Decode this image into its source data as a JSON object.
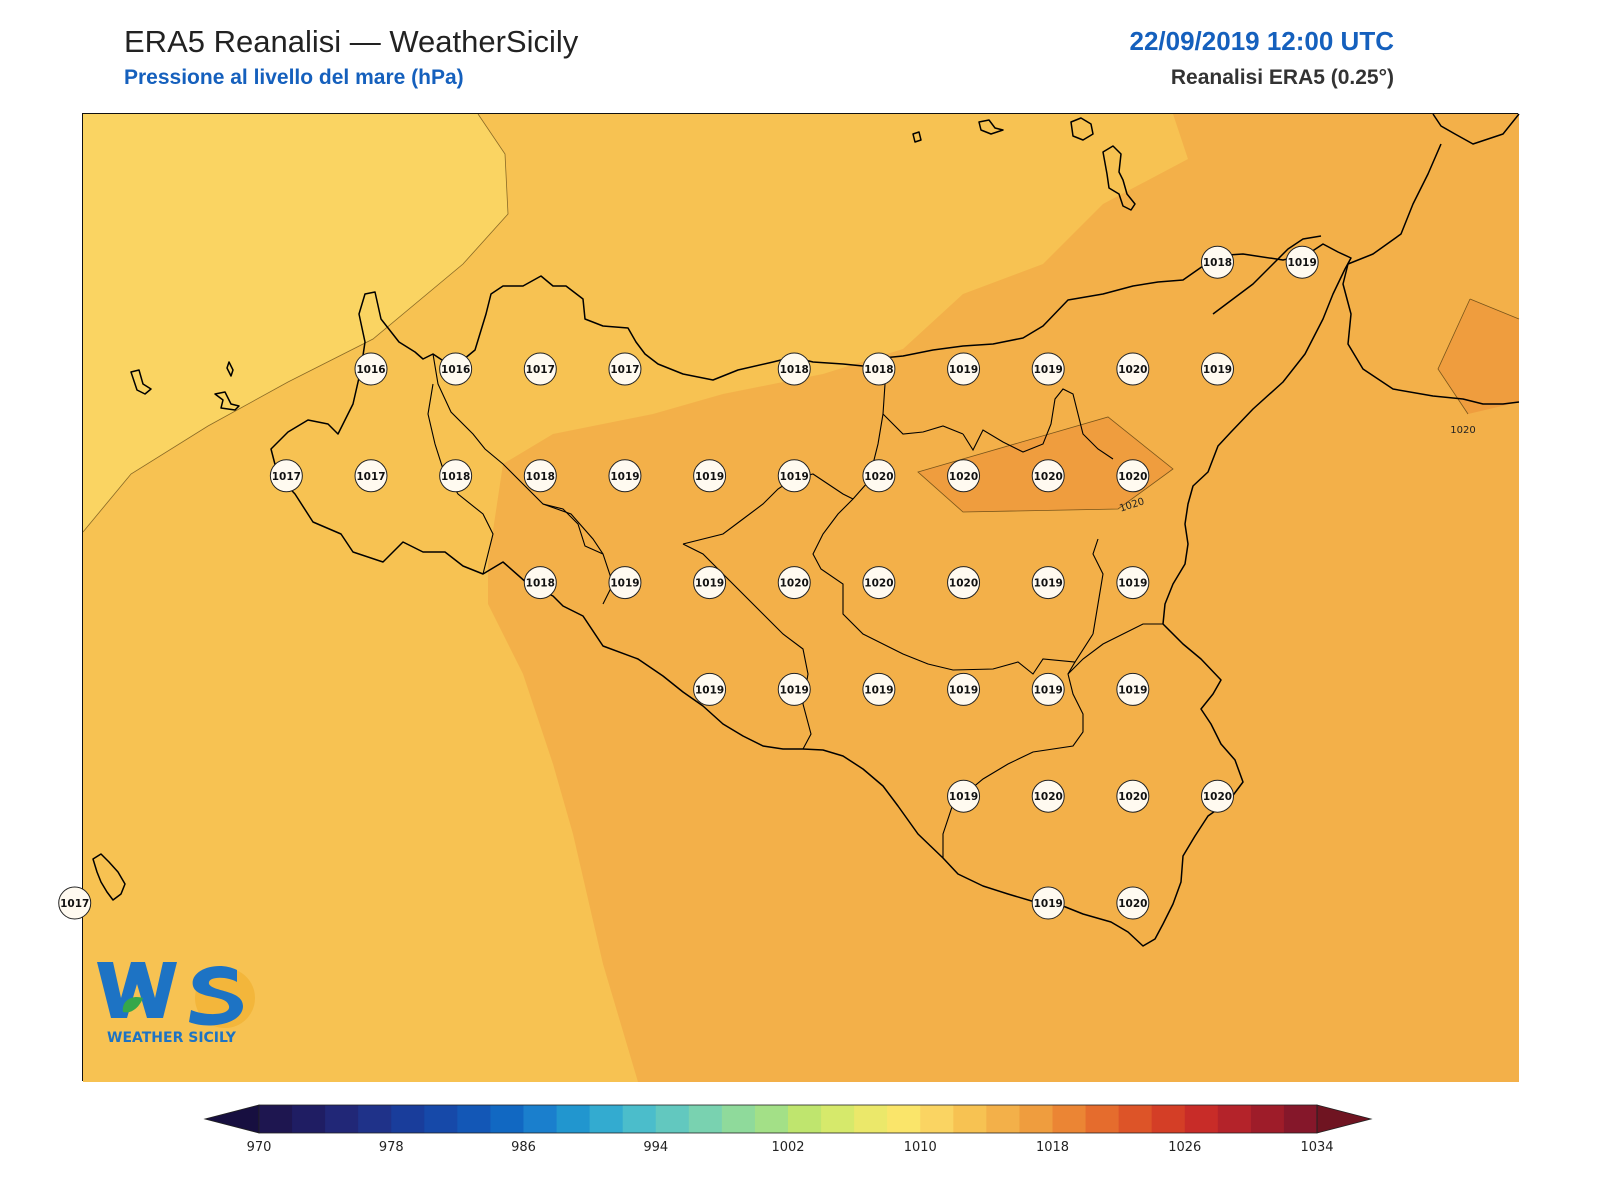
{
  "header": {
    "title": "ERA5 Reanalisi — WeatherSicily",
    "subtitle": "Pressione al livello del mare (hPa)",
    "date": "22/09/2019 12:00 UTC",
    "source": "Reanalisi ERA5 (0.25°)"
  },
  "colors": {
    "accent_blue": "#1560bd",
    "field_1016": "#fad462",
    "field_1018": "#f7c252",
    "field_1019": "#f3b049",
    "field_1020": "#ef9d3e"
  },
  "stations": [
    {
      "lon": 12.0,
      "lat": 38.25,
      "v": "1016"
    },
    {
      "lon": 12.5,
      "lat": 38.25,
      "v": "1016"
    },
    {
      "lon": 13.0,
      "lat": 38.25,
      "v": "1017"
    },
    {
      "lon": 13.5,
      "lat": 38.25,
      "v": "1017"
    },
    {
      "lon": 14.5,
      "lat": 38.25,
      "v": "1018"
    },
    {
      "lon": 15.0,
      "lat": 38.25,
      "v": "1018"
    },
    {
      "lon": 15.5,
      "lat": 38.25,
      "v": "1019"
    },
    {
      "lon": 16.0,
      "lat": 38.25,
      "v": "1019"
    },
    {
      "lon": 16.5,
      "lat": 38.25,
      "v": "1020"
    },
    {
      "lon": 17.0,
      "lat": 38.25,
      "v": "1019"
    },
    {
      "lon": 17.0,
      "lat": 38.75,
      "v": "1018"
    },
    {
      "lon": 17.5,
      "lat": 38.75,
      "v": "1019"
    },
    {
      "lon": 11.5,
      "lat": 37.75,
      "v": "1017"
    },
    {
      "lon": 12.0,
      "lat": 37.75,
      "v": "1017"
    },
    {
      "lon": 12.5,
      "lat": 37.75,
      "v": "1018"
    },
    {
      "lon": 13.0,
      "lat": 37.75,
      "v": "1018"
    },
    {
      "lon": 13.5,
      "lat": 37.75,
      "v": "1019"
    },
    {
      "lon": 14.0,
      "lat": 37.75,
      "v": "1019"
    },
    {
      "lon": 14.5,
      "lat": 37.75,
      "v": "1019"
    },
    {
      "lon": 15.0,
      "lat": 37.75,
      "v": "1020"
    },
    {
      "lon": 15.5,
      "lat": 37.75,
      "v": "1020"
    },
    {
      "lon": 16.0,
      "lat": 37.75,
      "v": "1020"
    },
    {
      "lon": 16.5,
      "lat": 37.75,
      "v": "1020"
    },
    {
      "lon": 13.0,
      "lat": 37.25,
      "v": "1018"
    },
    {
      "lon": 13.5,
      "lat": 37.25,
      "v": "1019"
    },
    {
      "lon": 14.0,
      "lat": 37.25,
      "v": "1019"
    },
    {
      "lon": 14.5,
      "lat": 37.25,
      "v": "1020"
    },
    {
      "lon": 15.0,
      "lat": 37.25,
      "v": "1020"
    },
    {
      "lon": 15.5,
      "lat": 37.25,
      "v": "1020"
    },
    {
      "lon": 16.0,
      "lat": 37.25,
      "v": "1019"
    },
    {
      "lon": 16.5,
      "lat": 37.25,
      "v": "1019"
    },
    {
      "lon": 14.0,
      "lat": 36.75,
      "v": "1019"
    },
    {
      "lon": 14.5,
      "lat": 36.75,
      "v": "1019"
    },
    {
      "lon": 15.0,
      "lat": 36.75,
      "v": "1019"
    },
    {
      "lon": 15.5,
      "lat": 36.75,
      "v": "1019"
    },
    {
      "lon": 16.0,
      "lat": 36.75,
      "v": "1019"
    },
    {
      "lon": 16.5,
      "lat": 36.75,
      "v": "1019"
    },
    {
      "lon": 15.5,
      "lat": 36.25,
      "v": "1019"
    },
    {
      "lon": 16.0,
      "lat": 36.25,
      "v": "1020"
    },
    {
      "lon": 16.5,
      "lat": 36.25,
      "v": "1020"
    },
    {
      "lon": 17.0,
      "lat": 36.25,
      "v": "1020"
    },
    {
      "lon": 16.0,
      "lat": 35.75,
      "v": "1019"
    },
    {
      "lon": 16.5,
      "lat": 35.75,
      "v": "1020"
    },
    {
      "lon": 10.25,
      "lat": 35.75,
      "v": "1017"
    }
  ],
  "isobar_labels": [
    {
      "text": "1020",
      "lon": 16.5,
      "lat": 37.6
    },
    {
      "text": "1020",
      "lon": 18.45,
      "lat": 37.95
    }
  ],
  "colorbar": {
    "min": 970,
    "max": 1034,
    "step": 2,
    "tick_labels": [
      "970",
      "978",
      "986",
      "994",
      "1002",
      "1010",
      "1018",
      "1026",
      "1034"
    ],
    "colors": [
      "#1e1650",
      "#1f1d63",
      "#212777",
      "#1f3289",
      "#193d9b",
      "#1649a9",
      "#1357b6",
      "#1168c2",
      "#1a7fcd",
      "#2196cf",
      "#33abd0",
      "#4bbdcb",
      "#62c8bf",
      "#79d2b0",
      "#8fda9b",
      "#a3e087",
      "#bfe56e",
      "#d6e96b",
      "#ebe86a",
      "#fae56a",
      "#fad462",
      "#f7c252",
      "#f3b049",
      "#ef9d3e",
      "#eb8534",
      "#e56c2d",
      "#dd5428",
      "#d43e26",
      "#c82c28",
      "#b4232a",
      "#9e1c29",
      "#85172a"
    ],
    "under_color": "#170f40",
    "over_color": "#6f1421"
  },
  "logo": {
    "text": "WEATHER SICILY",
    "initials": "WS"
  }
}
